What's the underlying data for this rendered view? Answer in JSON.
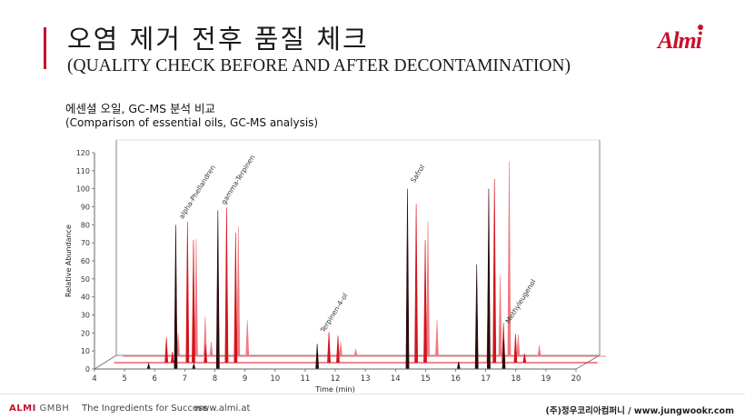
{
  "header": {
    "title_ko": "오염 제거 전후 품질 체크",
    "title_en": "(QUALITY CHECK BEFORE AND AFTER DECONTAMINATION)",
    "logo_text": "Almi"
  },
  "section": {
    "subtitle_ko": "에센셜 오일, GC-MS 분석 비교",
    "subtitle_en": "(Comparison of essential oils, GC-MS analysis)"
  },
  "chart_data": {
    "type": "line",
    "title": "",
    "xlabel": "Time (min)",
    "ylabel": "Relative Abundance",
    "xlim": [
      4,
      20
    ],
    "ylim": [
      0,
      120
    ],
    "x_ticks": [
      "4",
      "5",
      "6",
      "7",
      "8",
      "9",
      "10",
      "11",
      "12",
      "13",
      "14",
      "15",
      "16",
      "17",
      "18",
      "19",
      "20"
    ],
    "y_ticks": [
      "0",
      "10",
      "20",
      "30",
      "40",
      "50",
      "60",
      "70",
      "80",
      "90",
      "100",
      "110",
      "120"
    ],
    "grid": false,
    "legend": "none",
    "colors": {
      "back": "#f07a80",
      "middle": "#d3141c",
      "front": "#2b0a0a",
      "axis": "#666666"
    },
    "series": [
      {
        "depth": 2,
        "peaks": [
          {
            "x": 6.2,
            "y": 13
          },
          {
            "x": 6.8,
            "y": 65
          },
          {
            "x": 7.1,
            "y": 22
          },
          {
            "x": 7.3,
            "y": 8
          },
          {
            "x": 8.2,
            "y": 72
          },
          {
            "x": 8.5,
            "y": 20
          },
          {
            "x": 11.6,
            "y": 8
          },
          {
            "x": 12.1,
            "y": 4
          },
          {
            "x": 14.5,
            "y": 75
          },
          {
            "x": 14.8,
            "y": 20
          },
          {
            "x": 16.9,
            "y": 45
          },
          {
            "x": 17.2,
            "y": 108
          },
          {
            "x": 17.5,
            "y": 12
          },
          {
            "x": 18.2,
            "y": 6
          }
        ]
      },
      {
        "depth": 1,
        "peaks": [
          {
            "x": 6.1,
            "y": 14
          },
          {
            "x": 6.3,
            "y": 6
          },
          {
            "x": 6.8,
            "y": 78
          },
          {
            "x": 7.0,
            "y": 68
          },
          {
            "x": 7.4,
            "y": 10
          },
          {
            "x": 8.1,
            "y": 86
          },
          {
            "x": 8.4,
            "y": 72
          },
          {
            "x": 11.5,
            "y": 17
          },
          {
            "x": 11.8,
            "y": 15
          },
          {
            "x": 14.4,
            "y": 88
          },
          {
            "x": 14.7,
            "y": 68
          },
          {
            "x": 16.8,
            "y": 55
          },
          {
            "x": 17.0,
            "y": 102
          },
          {
            "x": 17.3,
            "y": 22
          },
          {
            "x": 17.7,
            "y": 16
          },
          {
            "x": 18.0,
            "y": 5
          }
        ]
      },
      {
        "depth": 0,
        "peaks": [
          {
            "x": 5.8,
            "y": 3
          },
          {
            "x": 6.7,
            "y": 80
          },
          {
            "x": 7.3,
            "y": 3
          },
          {
            "x": 8.1,
            "y": 88
          },
          {
            "x": 11.4,
            "y": 14
          },
          {
            "x": 14.4,
            "y": 100
          },
          {
            "x": 16.1,
            "y": 4
          },
          {
            "x": 16.7,
            "y": 58
          },
          {
            "x": 17.1,
            "y": 100
          },
          {
            "x": 17.6,
            "y": 16
          }
        ]
      }
    ],
    "annotations": [
      {
        "label": "alpha-Phellandren",
        "x": 6.75,
        "y": 80
      },
      {
        "label": "gamma-Terpinen",
        "x": 8.15,
        "y": 88
      },
      {
        "label": "Terpinen-4-ol",
        "x": 11.45,
        "y": 17
      },
      {
        "label": "Safrol",
        "x": 14.45,
        "y": 100
      },
      {
        "label": "Methyleugenol",
        "x": 17.6,
        "y": 22
      }
    ]
  },
  "footer": {
    "brand_red": "ALMI",
    "brand_rest": " GMBH",
    "slogan": "The Ingredients for Success",
    "website": "www.almi.at",
    "partner": "(주)정우코리아컴퍼니 / www.jungwookr.com"
  }
}
